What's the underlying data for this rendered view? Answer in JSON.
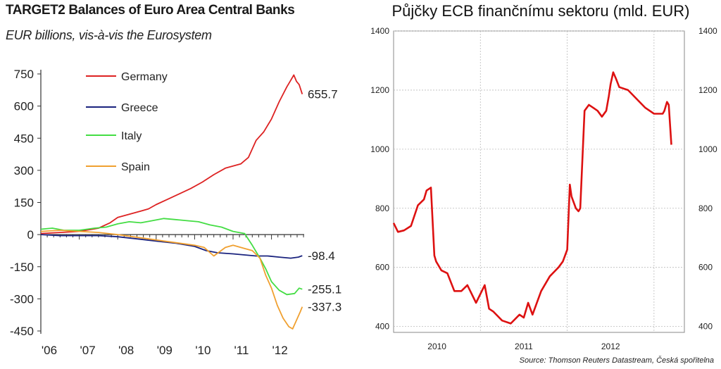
{
  "chart_data": [
    {
      "type": "line",
      "title": "TARGET2 Balances of Euro Area Central Banks",
      "subtitle": "EUR billions, vis-à-vis the Eurosystem",
      "xlabel": "",
      "ylabel": "",
      "ylim": [
        -450,
        750
      ],
      "yticks": [
        "750",
        "600",
        "450",
        "300",
        "150",
        "0",
        "-150",
        "-300",
        "-450"
      ],
      "yticks_values": [
        750,
        600,
        450,
        300,
        150,
        0,
        -150,
        -300,
        -450
      ],
      "xlim": [
        2006.0,
        2012.85
      ],
      "xticks": [
        "'06",
        "'07",
        "'08",
        "'09",
        "'10",
        "'11",
        "'12"
      ],
      "xticks_values": [
        2006,
        2007,
        2008,
        2009,
        2010,
        2011,
        2012
      ],
      "grid": false,
      "legend": "top-left",
      "series": [
        {
          "name": "Germany",
          "color": "#dd2222",
          "end_label": "655.7",
          "x": [
            2006.0,
            2006.5,
            2007.0,
            2007.5,
            2007.8,
            2008.0,
            2008.3,
            2008.6,
            2008.8,
            2009.0,
            2009.3,
            2009.6,
            2009.9,
            2010.2,
            2010.5,
            2010.8,
            2011.0,
            2011.2,
            2011.4,
            2011.6,
            2011.8,
            2012.0,
            2012.2,
            2012.4,
            2012.5,
            2012.58,
            2012.65,
            2012.72,
            2012.8
          ],
          "y": [
            5,
            10,
            15,
            30,
            55,
            80,
            95,
            110,
            120,
            140,
            165,
            190,
            215,
            245,
            280,
            310,
            320,
            330,
            360,
            440,
            480,
            540,
            620,
            690,
            720,
            745,
            715,
            700,
            655.7
          ]
        },
        {
          "name": "Greece",
          "color": "#1a237e",
          "end_label": "-98.4",
          "x": [
            2006.0,
            2006.5,
            2007.0,
            2007.5,
            2008.0,
            2008.5,
            2009.0,
            2009.5,
            2010.0,
            2010.3,
            2010.6,
            2011.0,
            2011.3,
            2011.6,
            2011.9,
            2012.2,
            2012.5,
            2012.7,
            2012.8
          ],
          "y": [
            0,
            -5,
            -5,
            -5,
            -10,
            -20,
            -30,
            -40,
            -55,
            -75,
            -85,
            -90,
            -95,
            -100,
            -100,
            -105,
            -110,
            -105,
            -98.4
          ]
        },
        {
          "name": "Italy",
          "color": "#44dd44",
          "end_label": "-255.1",
          "x": [
            2006.0,
            2006.3,
            2006.6,
            2007.0,
            2007.4,
            2007.7,
            2008.0,
            2008.3,
            2008.6,
            2008.9,
            2009.2,
            2009.5,
            2009.8,
            2010.1,
            2010.4,
            2010.7,
            2011.0,
            2011.3,
            2011.5,
            2011.7,
            2011.85,
            2012.0,
            2012.2,
            2012.4,
            2012.6,
            2012.72,
            2012.8
          ],
          "y": [
            25,
            30,
            20,
            20,
            30,
            35,
            50,
            60,
            55,
            65,
            75,
            70,
            65,
            60,
            45,
            35,
            15,
            5,
            -50,
            -110,
            -160,
            -220,
            -260,
            -280,
            -275,
            -250,
            -255.1
          ]
        },
        {
          "name": "Spain",
          "color": "#f0a030",
          "end_label": "-337.3",
          "x": [
            2006.0,
            2006.5,
            2007.0,
            2007.5,
            2008.0,
            2008.4,
            2008.8,
            2009.2,
            2009.6,
            2010.0,
            2010.25,
            2010.5,
            2010.8,
            2011.0,
            2011.3,
            2011.5,
            2011.7,
            2011.85,
            2012.0,
            2012.15,
            2012.3,
            2012.45,
            2012.55,
            2012.65,
            2012.75,
            2012.8
          ],
          "y": [
            15,
            20,
            15,
            10,
            0,
            -10,
            -20,
            -30,
            -40,
            -50,
            -60,
            -100,
            -60,
            -50,
            -65,
            -75,
            -110,
            -190,
            -250,
            -330,
            -390,
            -430,
            -440,
            -400,
            -360,
            -337.3
          ]
        }
      ]
    },
    {
      "type": "line",
      "title": "Půjčky ECB finančnímu sektoru (mld. EUR)",
      "source": "Source: Thomson Reuters Datastream, Česká spořitelna",
      "xlabel": "",
      "ylabel": "",
      "ylim": [
        380,
        1400
      ],
      "yticks": [
        "1400",
        "1200",
        "1000",
        "800",
        "600",
        "400"
      ],
      "yticks_values": [
        1400,
        1200,
        1000,
        800,
        600,
        400
      ],
      "xlim": [
        2009.5,
        2012.85
      ],
      "xticks": [
        "2010",
        "2011",
        "2012"
      ],
      "xticks_values": [
        2010,
        2011,
        2012
      ],
      "grid": true,
      "legend": "none",
      "series": [
        {
          "name": "",
          "color": "#dd1111",
          "x": [
            2009.5,
            2009.55,
            2009.62,
            2009.7,
            2009.78,
            2009.85,
            2009.88,
            2009.93,
            2009.97,
            2009.99,
            2010.01,
            2010.05,
            2010.12,
            2010.2,
            2010.28,
            2010.35,
            2010.45,
            2010.55,
            2010.6,
            2010.65,
            2010.75,
            2010.85,
            2010.95,
            2011.0,
            2011.05,
            2011.1,
            2011.2,
            2011.3,
            2011.4,
            2011.45,
            2011.5,
            2011.53,
            2011.55,
            2011.6,
            2011.63,
            2011.65,
            2011.7,
            2011.75,
            2011.8,
            2011.85,
            2011.9,
            2011.95,
            2011.98,
            2012.0,
            2012.03,
            2012.06,
            2012.1,
            2012.2,
            2012.3,
            2012.4,
            2012.5,
            2012.6,
            2012.62,
            2012.65,
            2012.67,
            2012.7
          ],
          "y": [
            750,
            720,
            725,
            740,
            810,
            830,
            860,
            870,
            640,
            620,
            610,
            590,
            580,
            520,
            520,
            540,
            480,
            540,
            460,
            450,
            420,
            410,
            440,
            430,
            480,
            440,
            520,
            570,
            600,
            620,
            660,
            880,
            840,
            800,
            790,
            800,
            1130,
            1150,
            1140,
            1130,
            1110,
            1130,
            1180,
            1220,
            1260,
            1240,
            1210,
            1200,
            1170,
            1140,
            1120,
            1120,
            1130,
            1160,
            1150,
            1015
          ]
        }
      ]
    }
  ]
}
